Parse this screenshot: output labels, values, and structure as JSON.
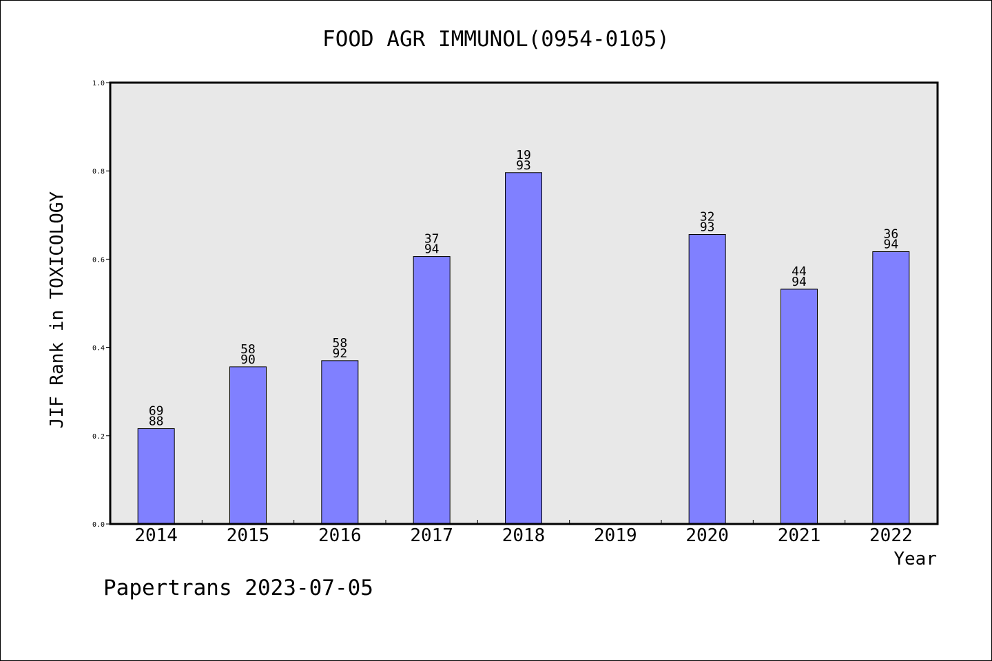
{
  "chart_data": {
    "type": "bar",
    "title": "FOOD AGR IMMUNOL(0954-0105)",
    "xlabel": "Year",
    "ylabel": "JIF Rank in TOXICOLOGY",
    "ylim": [
      0,
      1.0
    ],
    "yticks": [
      "0.0",
      "0.2",
      "0.4",
      "0.6",
      "0.8",
      "1.0"
    ],
    "grid": false,
    "categories": [
      "2014",
      "2015",
      "2016",
      "2017",
      "2018",
      "2019",
      "2020",
      "2021",
      "2022"
    ],
    "values": [
      0.216,
      0.356,
      0.37,
      0.606,
      0.796,
      null,
      0.656,
      0.532,
      0.617
    ],
    "labels_top": [
      "69",
      "58",
      "58",
      "37",
      "19",
      "",
      "32",
      "44",
      "36"
    ],
    "labels_bottom": [
      "88",
      "90",
      "92",
      "94",
      "93",
      "",
      "93",
      "94",
      "94"
    ],
    "colors": {
      "bar": "#8080ff",
      "plot_bg": "#e8e8e8"
    }
  },
  "footer": "Papertrans 2023-07-05"
}
